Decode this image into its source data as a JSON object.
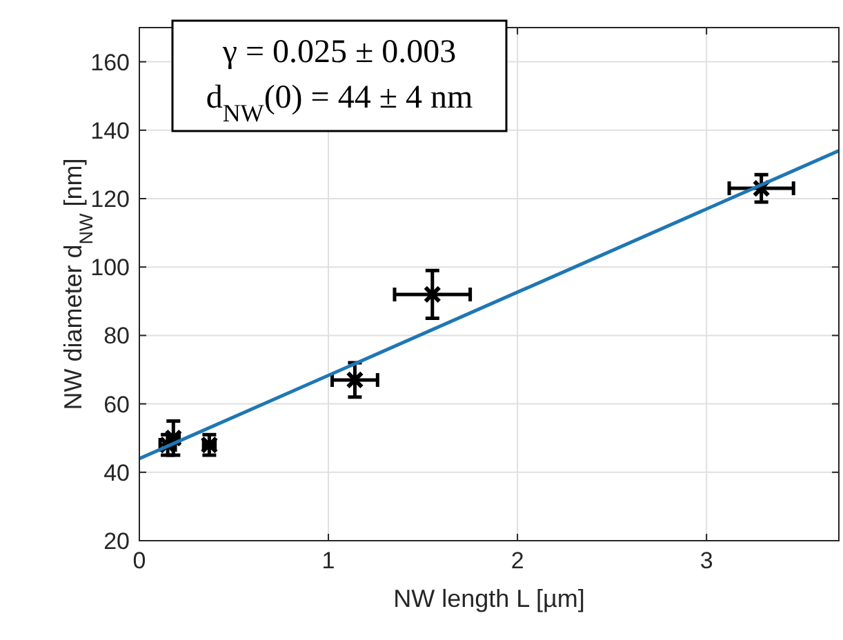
{
  "chart_data": {
    "type": "scatter",
    "xlabel": "NW length L [µm]",
    "ylabel": "NW diameter d$_{NW}$ [nm]",
    "xlim": [
      0,
      3.7
    ],
    "ylim": [
      20,
      170
    ],
    "xticks": [
      0,
      1,
      2,
      3
    ],
    "yticks": [
      20,
      40,
      60,
      80,
      100,
      120,
      140,
      160
    ],
    "grid": true,
    "series": [
      {
        "color": "#000000",
        "marker": "cross",
        "x": [
          0.15,
          0.18,
          0.37,
          1.14,
          1.55,
          3.29
        ],
        "values": [
          48,
          50,
          48,
          67,
          92,
          123
        ],
        "errors": [
          3,
          5,
          3,
          5,
          7,
          4
        ],
        "xerrors": [
          0.04,
          0.03,
          0.03,
          0.12,
          0.2,
          0.17
        ]
      },
      {
        "type": "line",
        "color": "#1f77b4",
        "line_style": "solid",
        "marker": "none",
        "x": [
          0,
          3.7
        ],
        "values": [
          44,
          134
        ]
      }
    ],
    "annotations": [
      "γ  = 0.025 ± 0.003",
      "d$_{NW}$(0) = 44 ± 4 nm"
    ]
  }
}
